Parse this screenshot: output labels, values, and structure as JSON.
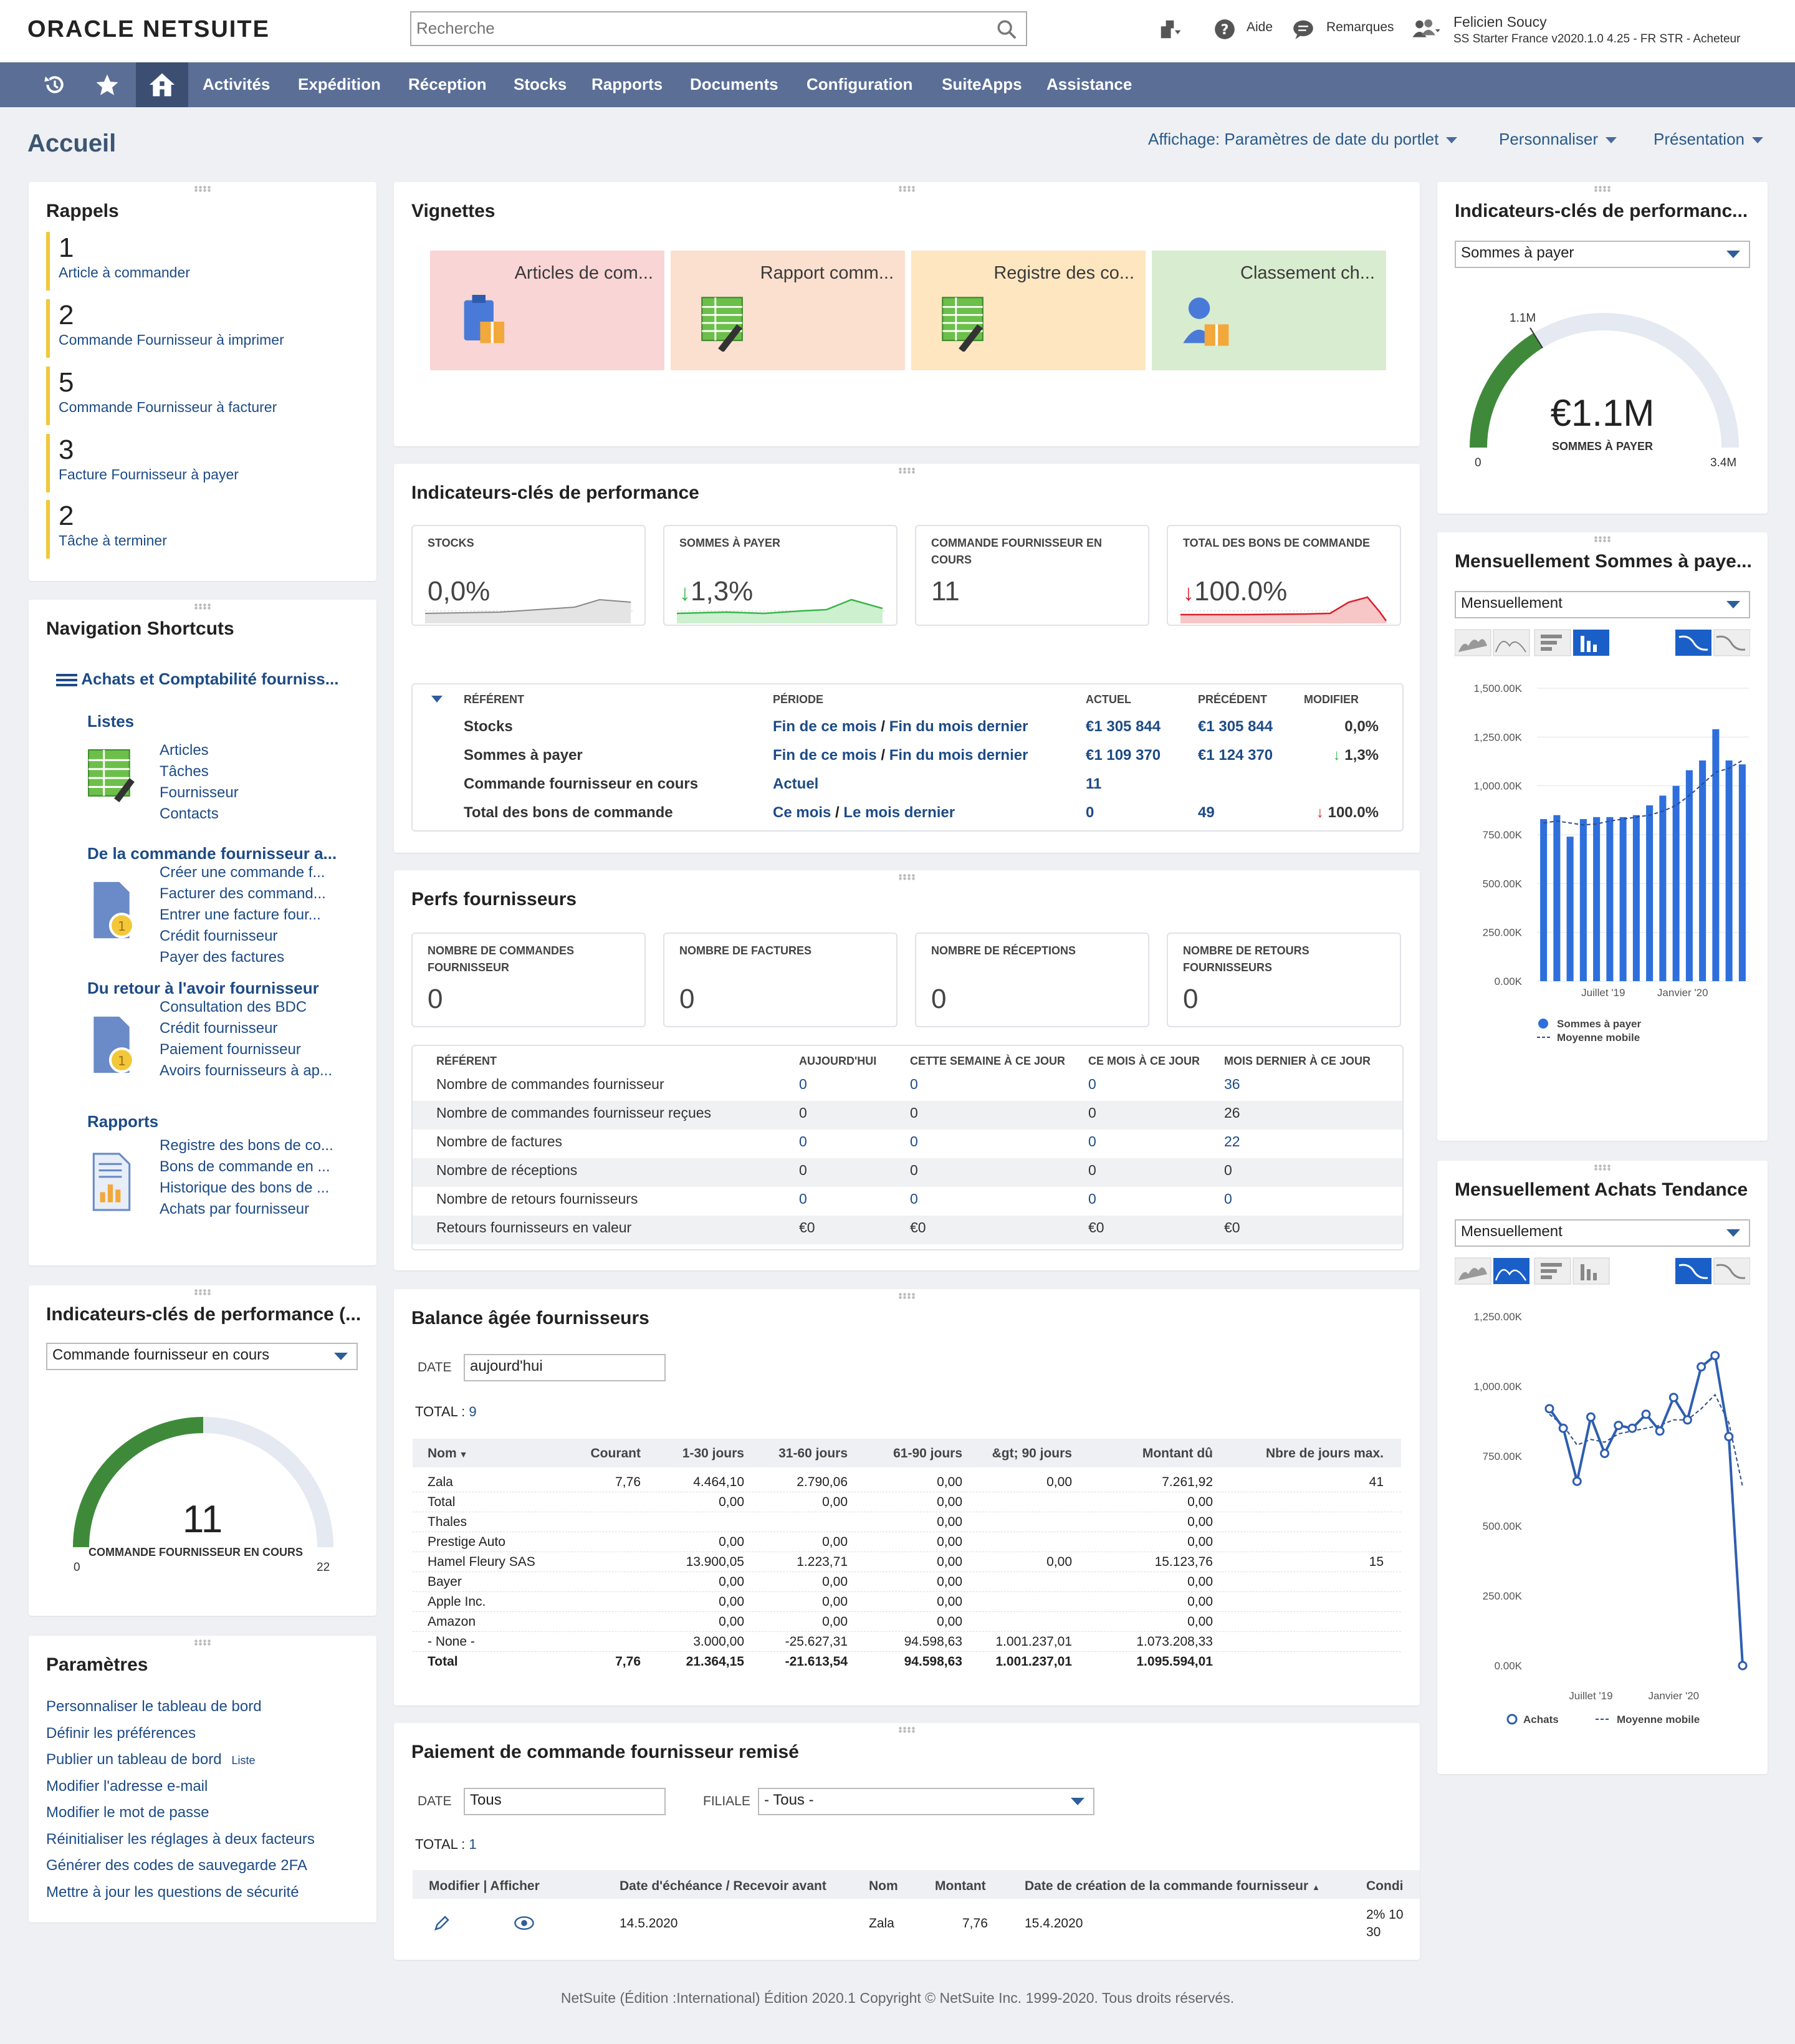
{
  "brand": {
    "logo_left": "ORACLE",
    "logo_right": "NETSUITE"
  },
  "search": {
    "placeholder": "Recherche"
  },
  "toolbar": {
    "help": "Aide",
    "feedback": "Remarques"
  },
  "user": {
    "name": "Felicien Soucy",
    "role": "SS Starter France v2020.1.0 4.25 - FR STR - Acheteur"
  },
  "nav": {
    "items": [
      "Activités",
      "Expédition",
      "Réception",
      "Stocks",
      "Rapports",
      "Documents",
      "Configuration",
      "SuiteApps",
      "Assistance"
    ]
  },
  "page": {
    "title": "Accueil",
    "view": "Affichage: Paramètres de date du portlet",
    "customize": "Personnaliser",
    "layout": "Présentation"
  },
  "reminders": {
    "title": "Rappels",
    "items": [
      {
        "count": "1",
        "label": "Article à commander"
      },
      {
        "count": "2",
        "label": "Commande Fournisseur à imprimer"
      },
      {
        "count": "5",
        "label": "Commande Fournisseur à facturer"
      },
      {
        "count": "3",
        "label": "Facture Fournisseur à payer"
      },
      {
        "count": "2",
        "label": "Tâche à terminer"
      }
    ]
  },
  "shortcuts": {
    "title": "Navigation Shortcuts",
    "group": "Achats et Comptabilité fourniss...",
    "sections": [
      {
        "heading": "Listes",
        "links": [
          "Articles",
          "Tâches",
          "Fournisseur",
          "Contacts"
        ]
      },
      {
        "heading": "De la commande fournisseur a...",
        "links": [
          "Créer une commande f...",
          "Facturer des command...",
          "Entrer une facture four...",
          "Crédit fournisseur",
          "Payer des factures"
        ]
      },
      {
        "heading": "Du retour à l'avoir fournisseur",
        "links": [
          "Consultation des BDC",
          "Crédit fournisseur",
          "Paiement fournisseur",
          "Avoirs fournisseurs à ap..."
        ]
      },
      {
        "heading": "Rapports",
        "links": [
          "Registre des bons de co...",
          "Bons de commande en ...",
          "Historique des bons de ...",
          "Achats par fournisseur"
        ]
      }
    ]
  },
  "kpi_gauge_left": {
    "title": "Indicateurs-clés de performance (...",
    "select": "Commande fournisseur en cours",
    "value": "11",
    "label": "COMMANDE FOURNISSEUR EN COURS",
    "min": "0",
    "max": "22",
    "fraction": 0.5
  },
  "params": {
    "title": "Paramètres",
    "links": [
      "Personnaliser le tableau de bord",
      "Définir les préférences",
      "Publier un tableau de bord",
      "Modifier l'adresse e-mail",
      "Modifier le mot de passe",
      "Réinitialiser les réglages à deux facteurs",
      "Générer des codes de sauvegarde 2FA",
      "Mettre à jour les questions de sécurité"
    ],
    "list_tag": "Liste"
  },
  "tiles": {
    "title": "Vignettes",
    "items": [
      {
        "label": "Articles de com...",
        "color": "#f9d5d5"
      },
      {
        "label": "Rapport comm...",
        "color": "#fbe0d0"
      },
      {
        "label": "Registre des co...",
        "color": "#fde6c0"
      },
      {
        "label": "Classement ch...",
        "color": "#d8eccf"
      }
    ]
  },
  "kpi": {
    "title": "Indicateurs-clés de performance",
    "boxes": [
      {
        "label": "STOCKS",
        "value": "0,0%",
        "trend": "none"
      },
      {
        "label": "SOMMES À PAYER",
        "value": "1,3%",
        "trend": "down-green"
      },
      {
        "label": "COMMANDE FOURNISSEUR EN COURS",
        "value": "11",
        "trend": "none"
      },
      {
        "label": "TOTAL DES BONS DE COMMANDE",
        "value": "100.0%",
        "trend": "down-red"
      }
    ],
    "table": {
      "headers": [
        "RÉFÉRENT",
        "PÉRIODE",
        "ACTUEL",
        "PRÉCÉDENT",
        "MODIFIER"
      ],
      "rows": [
        {
          "ref": "Stocks",
          "p1": "Fin de ce mois",
          "p2": "Fin du mois dernier",
          "cur": "€1 305 844",
          "prev": "€1 305 844",
          "chg": "0,0%",
          "arrow": ""
        },
        {
          "ref": "Sommes à payer",
          "p1": "Fin de ce mois",
          "p2": "Fin du mois dernier",
          "cur": "€1 109 370",
          "prev": "€1 124 370",
          "chg": "1,3%",
          "arrow": "green"
        },
        {
          "ref": "Commande fournisseur en cours",
          "p1": "Actuel",
          "p2": "",
          "cur": "11",
          "prev": "",
          "chg": "",
          "arrow": ""
        },
        {
          "ref": "Total des bons de commande",
          "p1": "Ce mois",
          "p2": "Le mois dernier",
          "cur": "0",
          "prev": "49",
          "chg": "100.0%",
          "arrow": "red"
        }
      ]
    }
  },
  "vendor_perf": {
    "title": "Perfs fournisseurs",
    "boxes": [
      {
        "label": "NOMBRE DE COMMANDES FOURNISSEUR",
        "value": "0"
      },
      {
        "label": "NOMBRE DE FACTURES",
        "value": "0"
      },
      {
        "label": "NOMBRE DE RÉCEPTIONS",
        "value": "0"
      },
      {
        "label": "NOMBRE DE RETOURS FOURNISSEURS",
        "value": "0"
      }
    ],
    "headers": [
      "RÉFÉRENT",
      "AUJOURD'HUI",
      "CETTE SEMAINE À CE JOUR",
      "CE MOIS À CE JOUR",
      "MOIS DERNIER À CE JOUR"
    ],
    "rows": [
      [
        "Nombre de commandes fournisseur",
        "0",
        "0",
        "0",
        "36"
      ],
      [
        "Nombre de commandes fournisseur reçues",
        "0",
        "0",
        "0",
        "26"
      ],
      [
        "Nombre de factures",
        "0",
        "0",
        "0",
        "22"
      ],
      [
        "Nombre de réceptions",
        "0",
        "0",
        "0",
        "0"
      ],
      [
        "Nombre de retours fournisseurs",
        "0",
        "0",
        "0",
        "0"
      ],
      [
        "Retours fournisseurs en valeur",
        "€0",
        "€0",
        "€0",
        "€0"
      ]
    ]
  },
  "aging": {
    "title": "Balance âgée fournisseurs",
    "date_label": "DATE",
    "date_value": "aujourd'hui",
    "total_label": "TOTAL : ",
    "total_value": "9",
    "headers": [
      "Nom",
      "Courant",
      "1-30 jours",
      "31-60 jours",
      "61-90 jours",
      "&gt; 90 jours",
      "Montant dû",
      "Nbre de jours max."
    ],
    "rows": [
      [
        "Zala",
        "7,76",
        "4.464,10",
        "2.790,06",
        "0,00",
        "0,00",
        "7.261,92",
        "41"
      ],
      [
        "Total",
        "",
        "0,00",
        "0,00",
        "0,00",
        "",
        "0,00",
        ""
      ],
      [
        "Thales",
        "",
        "",
        "",
        "0,00",
        "",
        "0,00",
        ""
      ],
      [
        "Prestige Auto",
        "",
        "0,00",
        "0,00",
        "0,00",
        "",
        "0,00",
        ""
      ],
      [
        "Hamel Fleury SAS",
        "",
        "13.900,05",
        "1.223,71",
        "0,00",
        "0,00",
        "15.123,76",
        "15"
      ],
      [
        "Bayer",
        "",
        "0,00",
        "0,00",
        "0,00",
        "",
        "0,00",
        ""
      ],
      [
        "Apple Inc.",
        "",
        "0,00",
        "0,00",
        "0,00",
        "",
        "0,00",
        ""
      ],
      [
        "Amazon",
        "",
        "0,00",
        "0,00",
        "0,00",
        "",
        "0,00",
        ""
      ],
      [
        "- None -",
        "",
        "3.000,00",
        "-25.627,31",
        "94.598,63",
        "1.001.237,01",
        "1.073.208,33",
        ""
      ]
    ],
    "total": [
      "Total",
      "7,76",
      "21.364,15",
      "-21.613,54",
      "94.598,63",
      "1.001.237,01",
      "1.095.594,01",
      ""
    ]
  },
  "payment": {
    "title": "Paiement de commande fournisseur remisé",
    "date_label": "DATE",
    "date_value": "Tous",
    "sub_label": "FILIALE",
    "sub_value": "- Tous -",
    "total_label": "TOTAL : ",
    "total_value": "1",
    "headers": [
      "Modifier | Afficher",
      "Date d'échéance / Recevoir avant",
      "Nom",
      "Montant",
      "Date de création de la commande fournisseur",
      "Condi"
    ],
    "row": {
      "due": "14.5.2020",
      "name": "Zala",
      "amount": "7,76",
      "created": "15.4.2020",
      "cond1": "2% 10",
      "cond2": "30"
    }
  },
  "gauge_right": {
    "title": "Indicateurs-clés de performanc...",
    "select": "Sommes à payer",
    "value": "€1.1M",
    "label": "SOMMES À PAYER",
    "marker": "1.1M",
    "min": "0",
    "max": "3.4M",
    "fraction": 0.3235
  },
  "chart_data": [
    {
      "type": "bar",
      "title": "Mensuellement Sommes à paye...",
      "select": "Mensuellement",
      "ylim": [
        0,
        1500
      ],
      "yticks": [
        "1,500.00K",
        "1,250.00K",
        "1,000.00K",
        "750.00K",
        "500.00K",
        "250.00K",
        "0.00K"
      ],
      "xticks": [
        "Juillet '19",
        "Janvier '20"
      ],
      "series": [
        {
          "name": "Sommes à payer",
          "values": [
            830,
            850,
            740,
            830,
            840,
            840,
            840,
            850,
            900,
            950,
            1000,
            1080,
            1130,
            1290,
            1130,
            1110
          ]
        },
        {
          "name": "Moyenne mobile",
          "values": [
            810,
            820,
            810,
            800,
            805,
            820,
            830,
            840,
            850,
            870,
            900,
            950,
            1010,
            1070,
            1090,
            1130
          ]
        }
      ]
    },
    {
      "type": "line",
      "title": "Mensuellement Achats Tendance",
      "select": "Mensuellement",
      "ylim": [
        0,
        1250
      ],
      "yticks": [
        "1,250.00K",
        "1,000.00K",
        "750.00K",
        "500.00K",
        "250.00K",
        "0.00K"
      ],
      "xticks": [
        "Juillet '19",
        "Janvier '20"
      ],
      "series": [
        {
          "name": "Achats",
          "values": [
            920,
            850,
            660,
            890,
            760,
            860,
            850,
            900,
            840,
            960,
            880,
            1070,
            1110,
            820,
            0
          ]
        },
        {
          "name": "Moyenne mobile",
          "values": [
            900,
            860,
            790,
            810,
            800,
            830,
            840,
            850,
            860,
            880,
            880,
            920,
            970,
            870,
            640
          ]
        }
      ]
    }
  ],
  "footer": "NetSuite (Édition :International) Édition 2020.1 Copyright © NetSuite Inc. 1999-2020. Tous droits réservés."
}
